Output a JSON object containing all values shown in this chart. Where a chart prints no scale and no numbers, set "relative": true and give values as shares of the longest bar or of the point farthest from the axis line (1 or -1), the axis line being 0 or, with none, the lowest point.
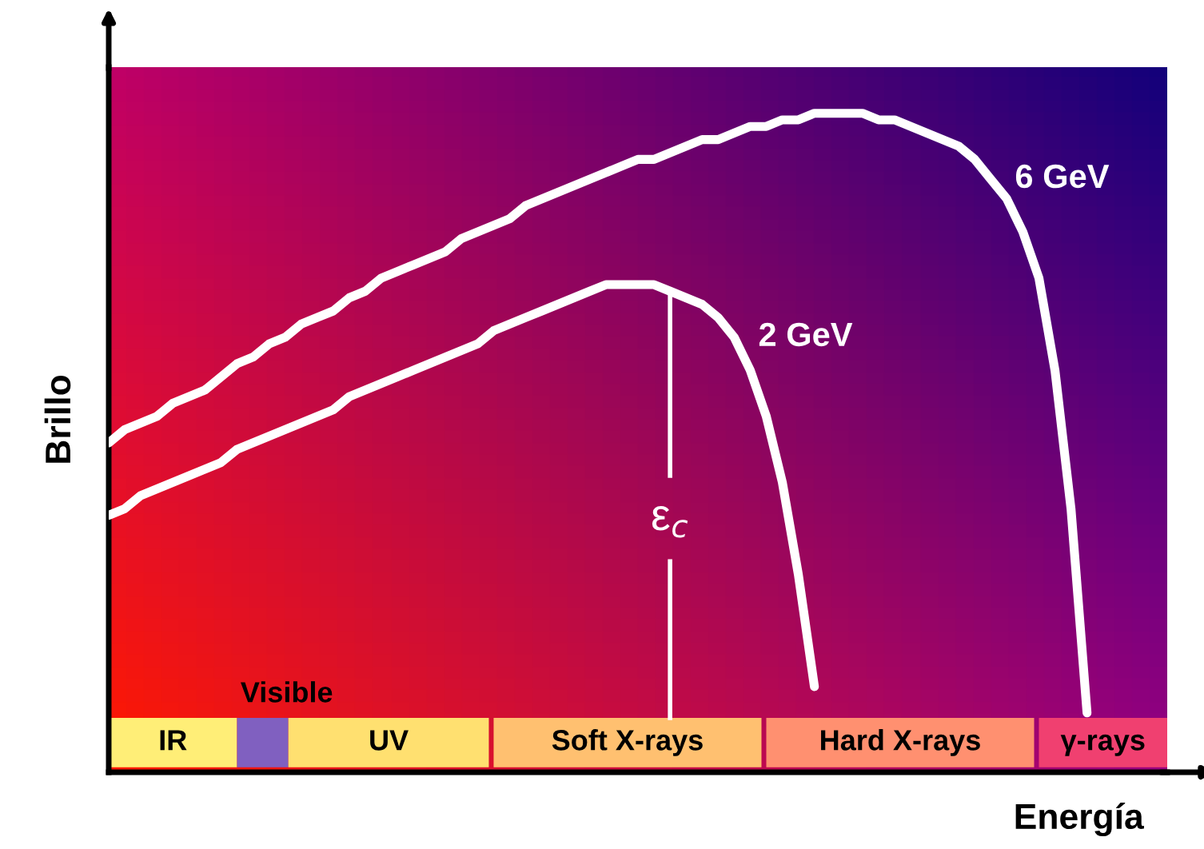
{
  "chart_data": {
    "type": "line",
    "relative": true,
    "xlabel": "Energía",
    "ylabel": "Brillo",
    "categories": [
      null,
      null,
      null,
      null,
      null,
      null,
      null,
      null,
      null,
      null,
      null,
      null,
      null,
      null,
      null,
      null,
      null,
      null,
      null,
      null,
      null,
      null,
      null,
      null,
      null,
      null,
      null,
      null,
      null,
      null,
      null,
      null,
      null,
      null,
      null,
      null,
      null,
      null,
      null,
      null,
      null,
      null,
      null,
      null,
      null,
      null,
      null,
      null,
      null,
      null,
      null,
      null,
      null,
      null,
      null,
      null,
      null,
      null,
      null,
      null,
      null,
      null,
      null,
      null,
      null,
      null,
      null
    ],
    "series": [
      {
        "name": "6 GeV",
        "color": "#ffffff",
        "values": [
          0.5,
          0.52,
          0.53,
          0.54,
          0.56,
          0.57,
          0.58,
          0.6,
          0.62,
          0.63,
          0.65,
          0.66,
          0.68,
          0.69,
          0.7,
          0.72,
          0.73,
          0.75,
          0.76,
          0.77,
          0.78,
          0.79,
          0.81,
          0.82,
          0.83,
          0.84,
          0.86,
          0.87,
          0.88,
          0.89,
          0.9,
          0.91,
          0.92,
          0.93,
          0.93,
          0.94,
          0.95,
          0.96,
          0.96,
          0.97,
          0.98,
          0.98,
          0.99,
          0.99,
          1.0,
          1.0,
          1.0,
          1.0,
          0.99,
          0.99,
          0.98,
          0.97,
          0.96,
          0.95,
          0.93,
          0.9,
          0.87,
          0.82,
          0.75,
          0.61,
          0.4,
          0.09,
          null,
          null,
          null,
          null,
          null
        ]
      },
      {
        "name": "2 GeV",
        "color": "#ffffff",
        "values": [
          0.39,
          0.4,
          0.42,
          0.43,
          0.44,
          0.45,
          0.46,
          0.47,
          0.49,
          0.5,
          0.51,
          0.52,
          0.53,
          0.54,
          0.55,
          0.57,
          0.58,
          0.59,
          0.6,
          0.61,
          0.62,
          0.63,
          0.64,
          0.65,
          0.67,
          0.68,
          0.69,
          0.7,
          0.71,
          0.72,
          0.73,
          0.74,
          0.74,
          0.74,
          0.74,
          0.73,
          0.72,
          0.71,
          0.69,
          0.66,
          0.61,
          0.54,
          0.44,
          0.3,
          0.13,
          null,
          null,
          null,
          null,
          null,
          null,
          null,
          null,
          null,
          null,
          null,
          null,
          null,
          null,
          null,
          null,
          null,
          null,
          null,
          null,
          null,
          null
        ]
      }
    ],
    "annotations": [
      "IR",
      "Visible",
      "UV",
      "Soft X-rays",
      "Hard X-rays",
      "γ-rays",
      "ε$_{c}$"
    ],
    "legend": false,
    "marker": "none",
    "line_style": "solid"
  }
}
